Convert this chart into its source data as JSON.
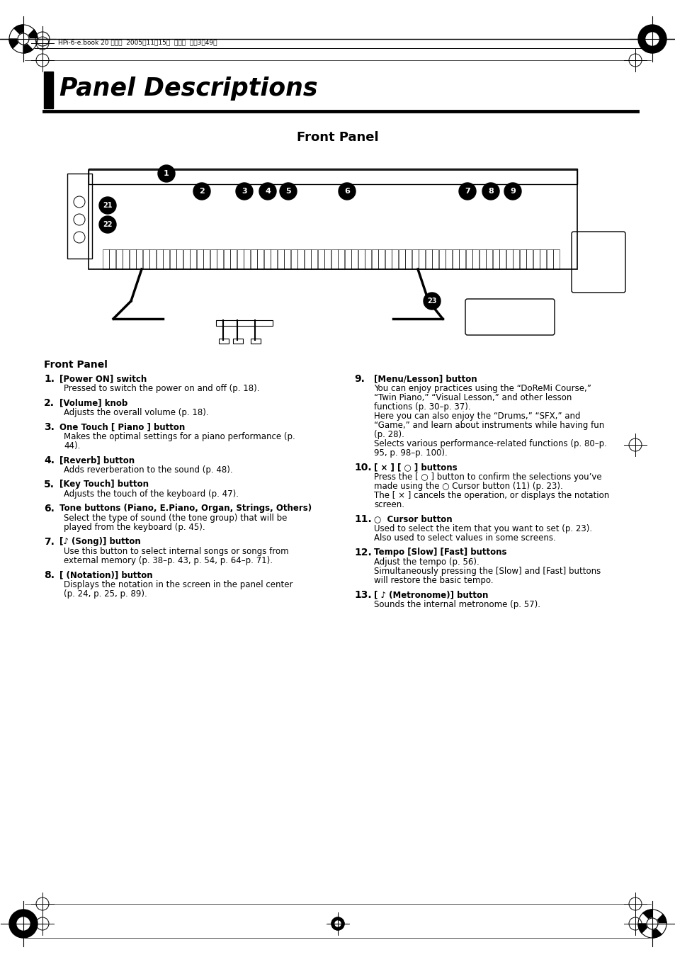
{
  "bg_color": "#ffffff",
  "page_num": "20",
  "header_text": "HPi-6-e.book 20 ページ  2005年11月15日  火曜日  午後3時49分",
  "title": "Panel Descriptions",
  "subtitle": "Front Panel",
  "section_title": "Front Panel",
  "left_items": [
    [
      "1.",
      "[Power ON] switch",
      "Pressed to switch the power on and off (p. 18)."
    ],
    [
      "2.",
      "[Volume] knob",
      "Adjusts the overall volume (p. 18)."
    ],
    [
      "3.",
      "One Touch [ Piano ] button",
      "Makes the optimal settings for a piano performance (p.\n44)."
    ],
    [
      "4.",
      "[Reverb] button",
      "Adds reverberation to the sound (p. 48)."
    ],
    [
      "5.",
      "[Key Touch] button",
      "Adjusts the touch of the keyboard (p. 47)."
    ],
    [
      "6.",
      "Tone buttons (Piano, E.Piano, Organ, Strings, Others)",
      "Select the type of sound (the tone group) that will be\nplayed from the keyboard (p. 45)."
    ],
    [
      "7.",
      "[♪ (Song)] button",
      "Use this button to select internal songs or songs from\nexternal memory (p. 38–p. 43, p. 54, p. 64–p. 71)."
    ],
    [
      "8.",
      "[ (Notation)] button",
      "Displays the notation in the screen in the panel center\n(p. 24, p. 25, p. 89)."
    ]
  ],
  "right_items": [
    [
      "9.",
      "[Menu/Lesson] button",
      "You can enjoy practices using the “DoReMi Course,”\n“Twin Piano,” “Visual Lesson,” and other lesson\nfunctions (p. 30–p. 37).\nHere you can also enjoy the “Drums,” “SFX,” and\n“Game,” and learn about instruments while having fun\n(p. 28).\nSelects various performance-related functions (p. 80–p.\n95, p. 98–p. 100)."
    ],
    [
      "10.",
      "[ × ] [ ○ ] buttons",
      "Press the [ ○ ] button to confirm the selections you’ve\nmade using the ○ Cursor button (11) (p. 23).\nThe [ × ] cancels the operation, or displays the notation\nscreen."
    ],
    [
      "11.",
      "○  Cursor button",
      "Used to select the item that you want to set (p. 23).\nAlso used to select values in some screens."
    ],
    [
      "12.",
      "Tempo [Slow] [Fast] buttons",
      "Adjust the tempo (p. 56).\nSimultaneously pressing the [Slow] and [Fast] buttons\nwill restore the basic tempo."
    ],
    [
      "13.",
      "[ ♪ (Metronome)] button",
      "Sounds the internal metronome (p. 57)."
    ]
  ]
}
